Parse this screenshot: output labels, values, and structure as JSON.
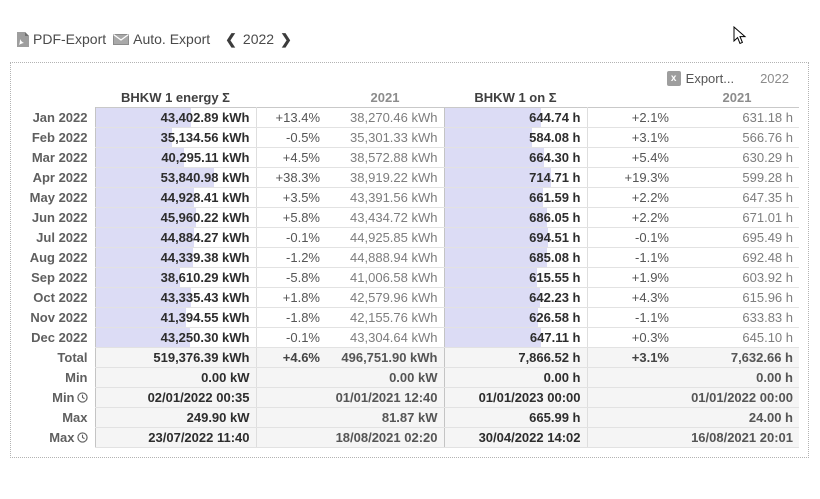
{
  "toolbar": {
    "pdf_export_label": "PDF-Export",
    "auto_export_label": "Auto. Export",
    "prev_year_glyph": "❮",
    "next_year_glyph": "❯",
    "current_year": "2022"
  },
  "panel": {
    "export_label": "Export...",
    "export_icon_glyph": "x",
    "year_badge": "2022",
    "sections": [
      {
        "title": "BHKW 1 energy Σ",
        "compare_year_header": "2021"
      },
      {
        "title": "BHKW 1 on Σ",
        "compare_year_header": "2021"
      }
    ],
    "bar_color": "#dcdcf5",
    "bar_axis_max": {
      "energy_kwh": 73000,
      "on_h": 950
    }
  },
  "table": {
    "months": [
      {
        "label": "Jan 2022",
        "energy": "43,402.89 kWh",
        "energy_raw": 43402.89,
        "energy_pct": "+13.4%",
        "energy_2021": "38,270.46 kWh",
        "on": "644.74 h",
        "on_raw": 644.74,
        "on_pct": "+2.1%",
        "on_2021": "631.18 h"
      },
      {
        "label": "Feb 2022",
        "energy": "35,134.56 kWh",
        "energy_raw": 35134.56,
        "energy_pct": "-0.5%",
        "energy_2021": "35,301.33 kWh",
        "on": "584.08 h",
        "on_raw": 584.08,
        "on_pct": "+3.1%",
        "on_2021": "566.76 h"
      },
      {
        "label": "Mar 2022",
        "energy": "40,295.11 kWh",
        "energy_raw": 40295.11,
        "energy_pct": "+4.5%",
        "energy_2021": "38,572.88 kWh",
        "on": "664.30 h",
        "on_raw": 664.3,
        "on_pct": "+5.4%",
        "on_2021": "630.29 h"
      },
      {
        "label": "Apr 2022",
        "energy": "53,840.98 kWh",
        "energy_raw": 53840.98,
        "energy_pct": "+38.3%",
        "energy_2021": "38,919.22 kWh",
        "on": "714.71 h",
        "on_raw": 714.71,
        "on_pct": "+19.3%",
        "on_2021": "599.28 h"
      },
      {
        "label": "May 2022",
        "energy": "44,928.41 kWh",
        "energy_raw": 44928.41,
        "energy_pct": "+3.5%",
        "energy_2021": "43,391.56 kWh",
        "on": "661.59 h",
        "on_raw": 661.59,
        "on_pct": "+2.2%",
        "on_2021": "647.35 h"
      },
      {
        "label": "Jun 2022",
        "energy": "45,960.22 kWh",
        "energy_raw": 45960.22,
        "energy_pct": "+5.8%",
        "energy_2021": "43,434.72 kWh",
        "on": "686.05 h",
        "on_raw": 686.05,
        "on_pct": "+2.2%",
        "on_2021": "671.01 h"
      },
      {
        "label": "Jul 2022",
        "energy": "44,884.27 kWh",
        "energy_raw": 44884.27,
        "energy_pct": "-0.1%",
        "energy_2021": "44,925.85 kWh",
        "on": "694.51 h",
        "on_raw": 694.51,
        "on_pct": "-0.1%",
        "on_2021": "695.49 h"
      },
      {
        "label": "Aug 2022",
        "energy": "44,339.38 kWh",
        "energy_raw": 44339.38,
        "energy_pct": "-1.2%",
        "energy_2021": "44,888.94 kWh",
        "on": "685.08 h",
        "on_raw": 685.08,
        "on_pct": "-1.1%",
        "on_2021": "692.48 h"
      },
      {
        "label": "Sep 2022",
        "energy": "38,610.29 kWh",
        "energy_raw": 38610.29,
        "energy_pct": "-5.8%",
        "energy_2021": "41,006.58 kWh",
        "on": "615.55 h",
        "on_raw": 615.55,
        "on_pct": "+1.9%",
        "on_2021": "603.92 h"
      },
      {
        "label": "Oct 2022",
        "energy": "43,335.43 kWh",
        "energy_raw": 43335.43,
        "energy_pct": "+1.8%",
        "energy_2021": "42,579.96 kWh",
        "on": "642.23 h",
        "on_raw": 642.23,
        "on_pct": "+4.3%",
        "on_2021": "615.96 h"
      },
      {
        "label": "Nov 2022",
        "energy": "41,394.55 kWh",
        "energy_raw": 41394.55,
        "energy_pct": "-1.8%",
        "energy_2021": "42,155.76 kWh",
        "on": "626.58 h",
        "on_raw": 626.58,
        "on_pct": "-1.1%",
        "on_2021": "633.83 h"
      },
      {
        "label": "Dec 2022",
        "energy": "43,250.30 kWh",
        "energy_raw": 43250.3,
        "energy_pct": "-0.1%",
        "energy_2021": "43,304.64 kWh",
        "on": "647.11 h",
        "on_raw": 647.11,
        "on_pct": "+0.3%",
        "on_2021": "645.10 h"
      }
    ],
    "summary": [
      {
        "label": "Total",
        "clock": false,
        "energy": "519,376.39 kWh",
        "energy_pct": "+4.6%",
        "energy_2021": "496,751.90 kWh",
        "on": "7,866.52 h",
        "on_pct": "+3.1%",
        "on_2021": "7,632.66 h"
      },
      {
        "label": "Min",
        "clock": false,
        "energy": "0.00 kW",
        "energy_pct": "",
        "energy_2021": "0.00 kW",
        "on": "0.00 h",
        "on_pct": "",
        "on_2021": "0.00 h"
      },
      {
        "label": "Min",
        "clock": true,
        "energy": "02/01/2022 00:35",
        "energy_pct": "",
        "energy_2021": "01/01/2021 12:40",
        "on": "01/01/2023 00:00",
        "on_pct": "",
        "on_2021": "01/01/2022 00:00"
      },
      {
        "label": "Max",
        "clock": false,
        "energy": "249.90 kW",
        "energy_pct": "",
        "energy_2021": "81.87 kW",
        "on": "665.99 h",
        "on_pct": "",
        "on_2021": "24.00 h"
      },
      {
        "label": "Max",
        "clock": true,
        "energy": "23/07/2022 11:40",
        "energy_pct": "",
        "energy_2021": "18/08/2021 02:20",
        "on": "30/04/2022 14:02",
        "on_pct": "",
        "on_2021": "16/08/2021 20:01"
      }
    ]
  }
}
